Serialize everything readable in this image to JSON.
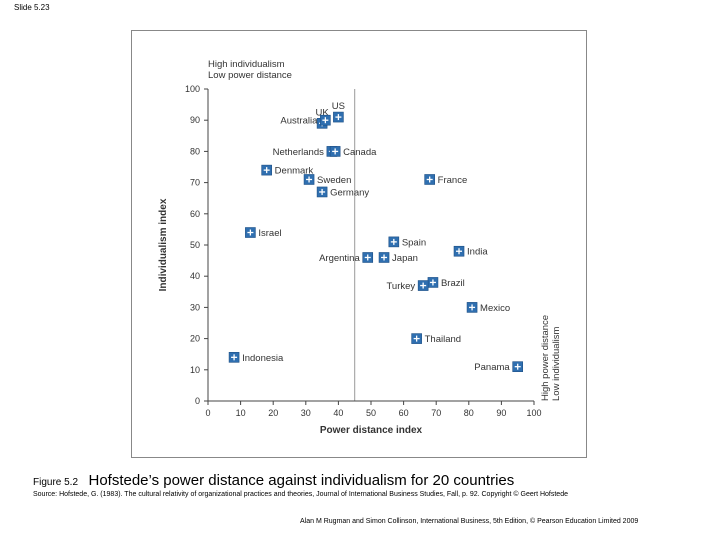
{
  "slide": {
    "label": "Slide 5.23"
  },
  "chart_data": {
    "type": "scatter",
    "xlabel": "Power distance index",
    "ylabel": "Individualism index",
    "xlim": [
      0,
      100
    ],
    "ylim": [
      0,
      100
    ],
    "xticks": [
      "0",
      "10",
      "20",
      "30",
      "40",
      "50",
      "60",
      "70",
      "80",
      "90",
      "100"
    ],
    "yticks": [
      "0",
      "10",
      "20",
      "30",
      "40",
      "50",
      "60",
      "70",
      "80",
      "90",
      "100"
    ],
    "reference_lines": {
      "x": 45,
      "y": 45
    },
    "quadrant_top_left": {
      "line1": "High individualism",
      "line2": "Low power distance"
    },
    "quadrant_bottom_right": {
      "line1": "High power distance",
      "line2": "Low individualism"
    },
    "points": [
      {
        "name": "US",
        "x": 40,
        "y": 91,
        "label_pos": "top"
      },
      {
        "name": "UK",
        "x": 35,
        "y": 89,
        "label_pos": "top"
      },
      {
        "name": "Australia",
        "x": 36,
        "y": 90,
        "label_pos": "left"
      },
      {
        "name": "Netherlands",
        "x": 38,
        "y": 80,
        "label_pos": "left"
      },
      {
        "name": "Canada",
        "x": 39,
        "y": 80,
        "label_pos": "right"
      },
      {
        "name": "Denmark",
        "x": 18,
        "y": 74,
        "label_pos": "right"
      },
      {
        "name": "Sweden",
        "x": 31,
        "y": 71,
        "label_pos": "right"
      },
      {
        "name": "Germany",
        "x": 35,
        "y": 67,
        "label_pos": "right"
      },
      {
        "name": "France",
        "x": 68,
        "y": 71,
        "label_pos": "right"
      },
      {
        "name": "Israel",
        "x": 13,
        "y": 54,
        "label_pos": "right"
      },
      {
        "name": "Spain",
        "x": 57,
        "y": 51,
        "label_pos": "right"
      },
      {
        "name": "India",
        "x": 77,
        "y": 48,
        "label_pos": "right"
      },
      {
        "name": "Argentina",
        "x": 49,
        "y": 46,
        "label_pos": "left"
      },
      {
        "name": "Japan",
        "x": 54,
        "y": 46,
        "label_pos": "right"
      },
      {
        "name": "Brazil",
        "x": 69,
        "y": 38,
        "label_pos": "right"
      },
      {
        "name": "Turkey",
        "x": 66,
        "y": 37,
        "label_pos": "left"
      },
      {
        "name": "Mexico",
        "x": 81,
        "y": 30,
        "label_pos": "right"
      },
      {
        "name": "Thailand",
        "x": 64,
        "y": 20,
        "label_pos": "right"
      },
      {
        "name": "Indonesia",
        "x": 8,
        "y": 14,
        "label_pos": "right"
      },
      {
        "name": "Panama",
        "x": 95,
        "y": 11,
        "label_pos": "left"
      }
    ]
  },
  "caption": {
    "figure_number": "Figure 5.2",
    "title": "Hofstede’s power distance against individualism for 20 countries"
  },
  "source": "Source: Hofstede, G. (1983). The cultural relativity of organizational practices and theories, Journal of International Business Studies, Fall, p. 92. Copyright © Geert Hofstede",
  "footer": "Alan M Rugman and Simon Collinson, International Business, 5th Edition, © Pearson Education Limited 2009",
  "colors": {
    "marker": "#2f6fb0",
    "marker_stroke": "#1d4f85",
    "axis": "#444444",
    "reference_line": "#9a9a9a",
    "label": "#333333"
  }
}
